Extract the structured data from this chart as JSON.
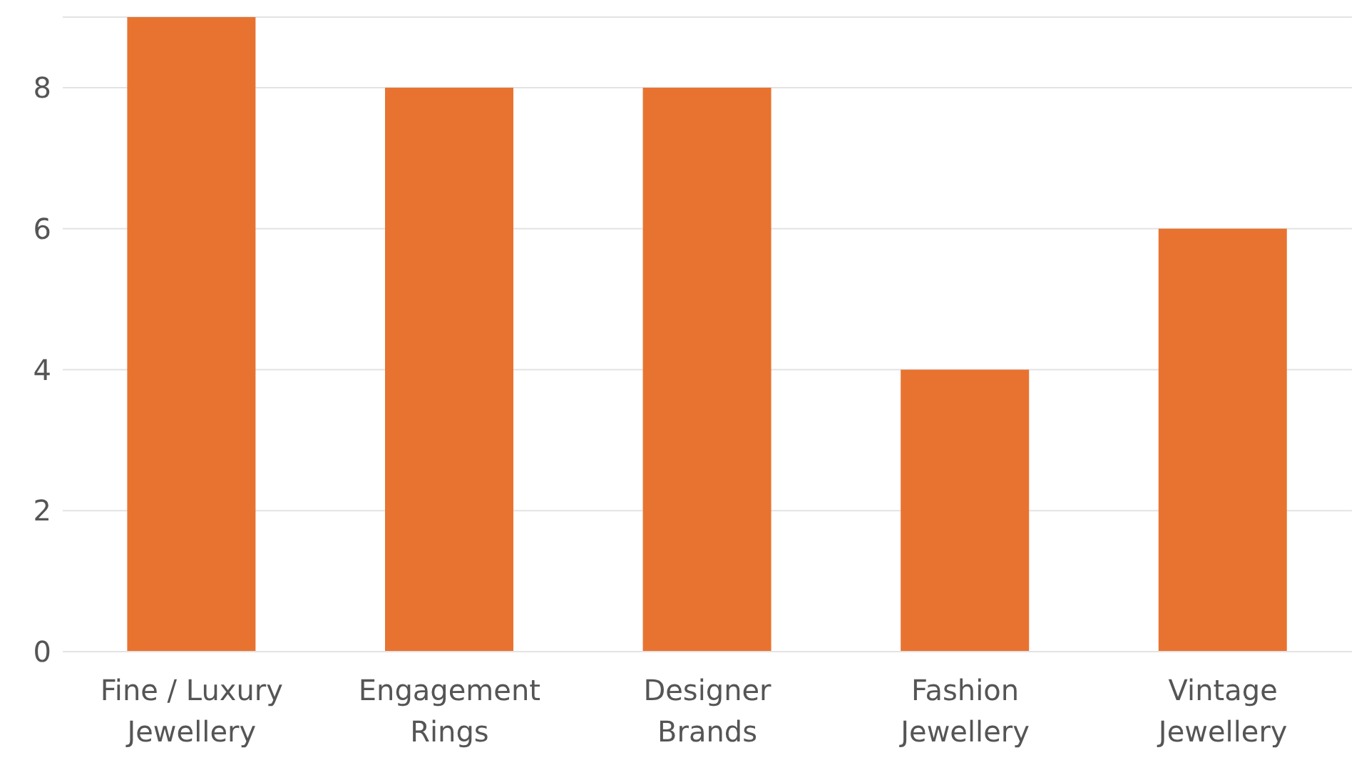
{
  "chart_data": {
    "type": "bar",
    "categories": [
      "Fine / Luxury Jewellery",
      "Engagement Rings",
      "Designer Brands",
      "Fashion Jewellery",
      "Vintage Jewellery"
    ],
    "values": [
      9,
      8,
      8,
      4,
      6
    ],
    "color": "#e87331",
    "ylim": [
      0,
      9
    ],
    "yticks": [
      0,
      2,
      4,
      6,
      8
    ],
    "grid": "y"
  }
}
